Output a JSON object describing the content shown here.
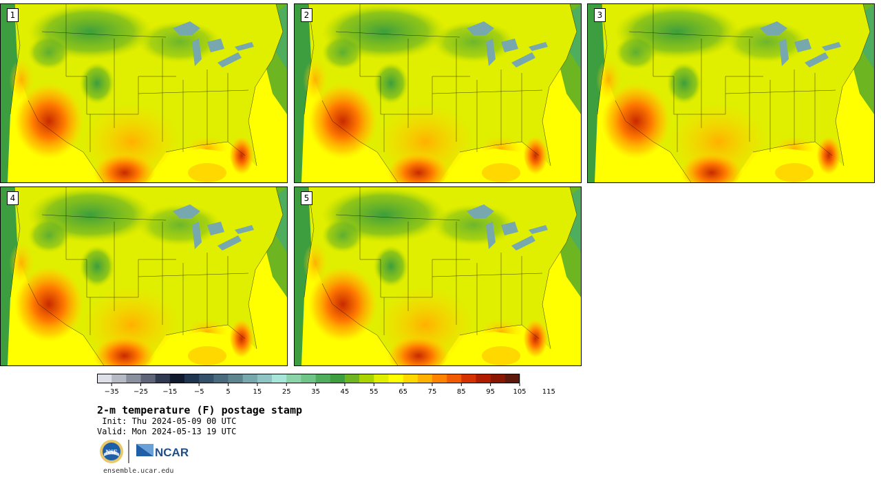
{
  "panels": [
    {
      "label": "1"
    },
    {
      "label": "2"
    },
    {
      "label": "3"
    },
    {
      "label": "4"
    },
    {
      "label": "5"
    }
  ],
  "colorbar": {
    "colors": [
      "#dde0e6",
      "#b6bac4",
      "#8b909f",
      "#5f6578",
      "#2f3a52",
      "#0f1a2e",
      "#1f3550",
      "#35506a",
      "#4a6b7e",
      "#5c8590",
      "#77a8ae",
      "#8fc4c4",
      "#a6e6d8",
      "#8ad4a8",
      "#6fc487",
      "#4fae5e",
      "#3c9e3e",
      "#6db521",
      "#aad400",
      "#e0ee00",
      "#ffff00",
      "#ffd800",
      "#ffb000",
      "#ff8200",
      "#f05a00",
      "#d43200",
      "#b01c00",
      "#8a1600",
      "#5e180c"
    ],
    "tick_labels": [
      "−35",
      "−25",
      "−15",
      "−5",
      "5",
      "15",
      "25",
      "35",
      "45",
      "55",
      "65",
      "75",
      "85",
      "95",
      "105",
      "115"
    ]
  },
  "title": "2-m temperature (F) postage stamp",
  "init": " Init: Thu 2024-05-09 00 UTC",
  "valid": "Valid: Mon 2024-05-13 19 UTC",
  "logos": {
    "nsf": "NSF",
    "ncar": "NCAR"
  },
  "footer_url": "ensemble.ucar.edu"
}
